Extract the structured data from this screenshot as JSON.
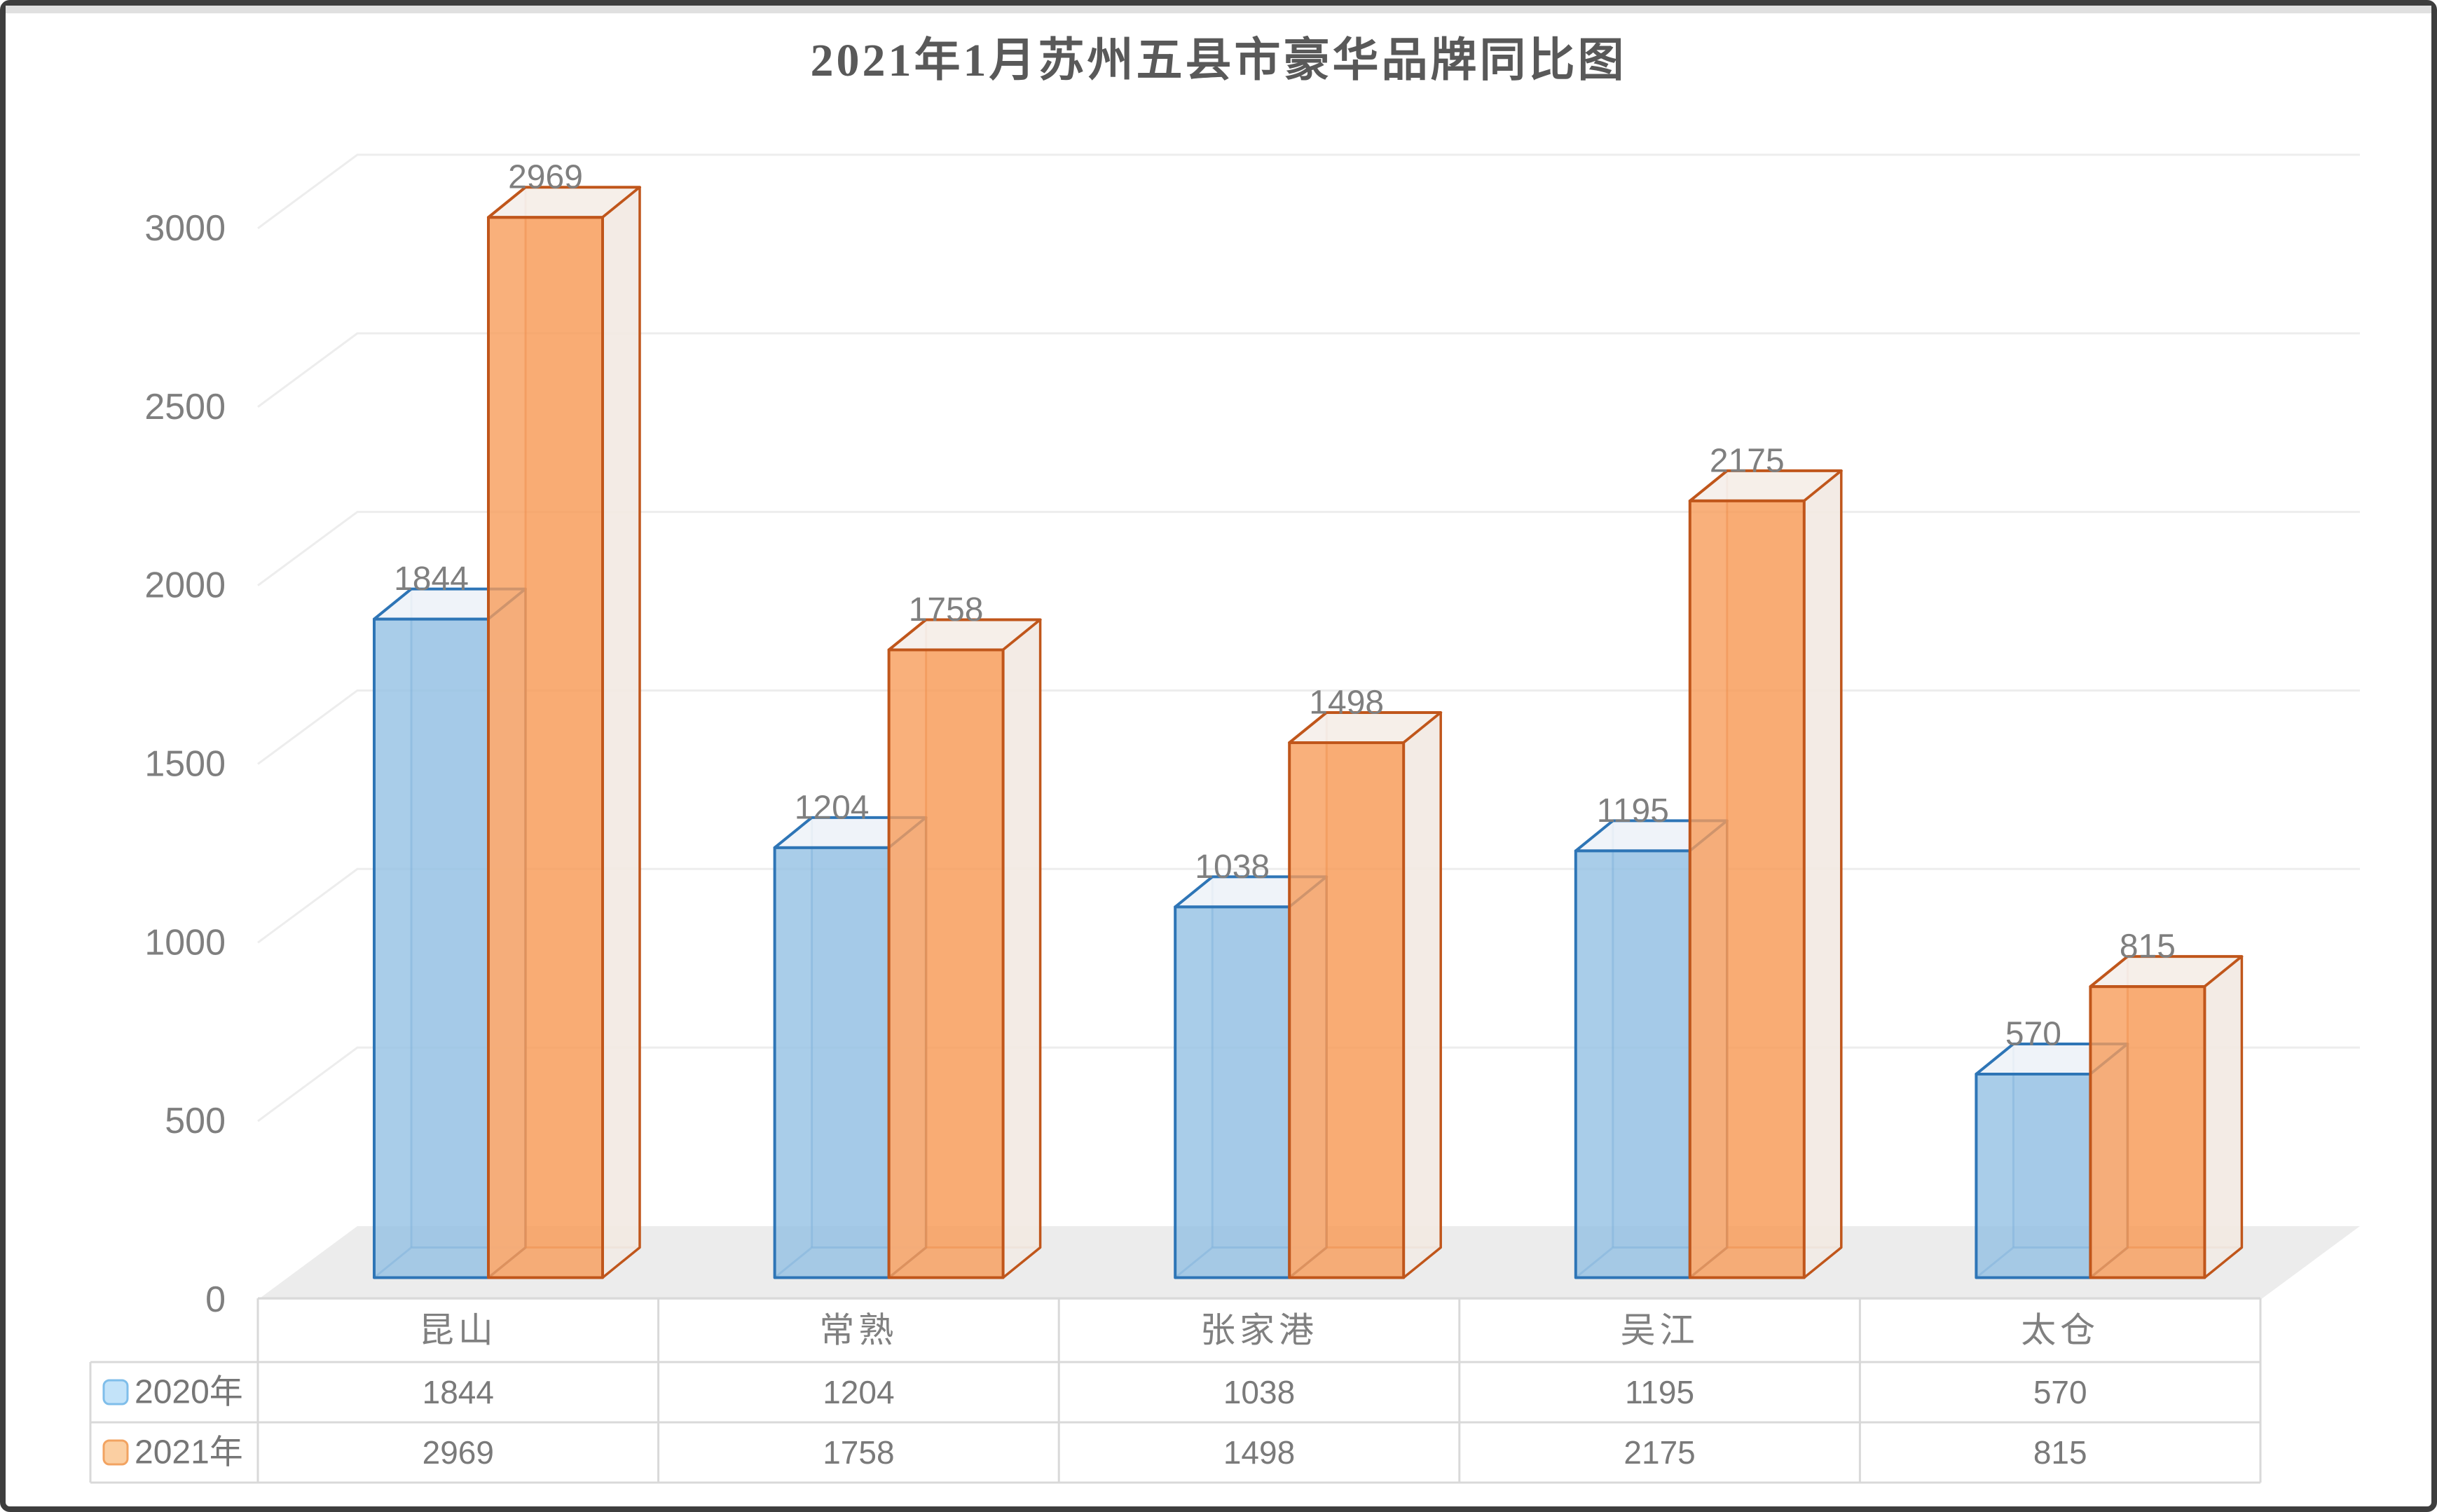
{
  "chart_data": {
    "type": "bar",
    "variant": "3d-clustered-column",
    "title": "2021年1月苏州五县市豪华品牌同比图",
    "categories": [
      "昆山",
      "常熟",
      "张家港",
      "吴江",
      "太仓"
    ],
    "series": [
      {
        "name": "2020年",
        "values": [
          1844,
          1204,
          1038,
          1195,
          570
        ],
        "front_color": "#94C1E4",
        "edge_color": "#2E75B6",
        "top_color": "#EFF3F9",
        "side_color": "#E9EFF6",
        "legend_fill": "#C3E3F9",
        "legend_edge": "#7FBEEA"
      },
      {
        "name": "2021年",
        "values": [
          2969,
          1758,
          1498,
          2175,
          815
        ],
        "front_color": "#F79C5A",
        "edge_color": "#C0561B",
        "top_color": "#F5EFEA",
        "side_color": "#F2EBE5",
        "legend_fill": "#FBCFA2",
        "legend_edge": "#F2A361"
      }
    ],
    "ylim": [
      0,
      3000
    ],
    "ytick_step": 500,
    "yticks": [
      0,
      500,
      1000,
      1500,
      2000,
      2500,
      3000
    ],
    "grid": true,
    "legend_position": "data-table-left",
    "title_color": "#595959",
    "axis_text_color": "#7F7F7F",
    "value_label_color": "#7F7F7F",
    "gridline_color": "#EDEDED",
    "floor_color": "#ECECEC",
    "table_border_color": "#D9D9D9"
  }
}
